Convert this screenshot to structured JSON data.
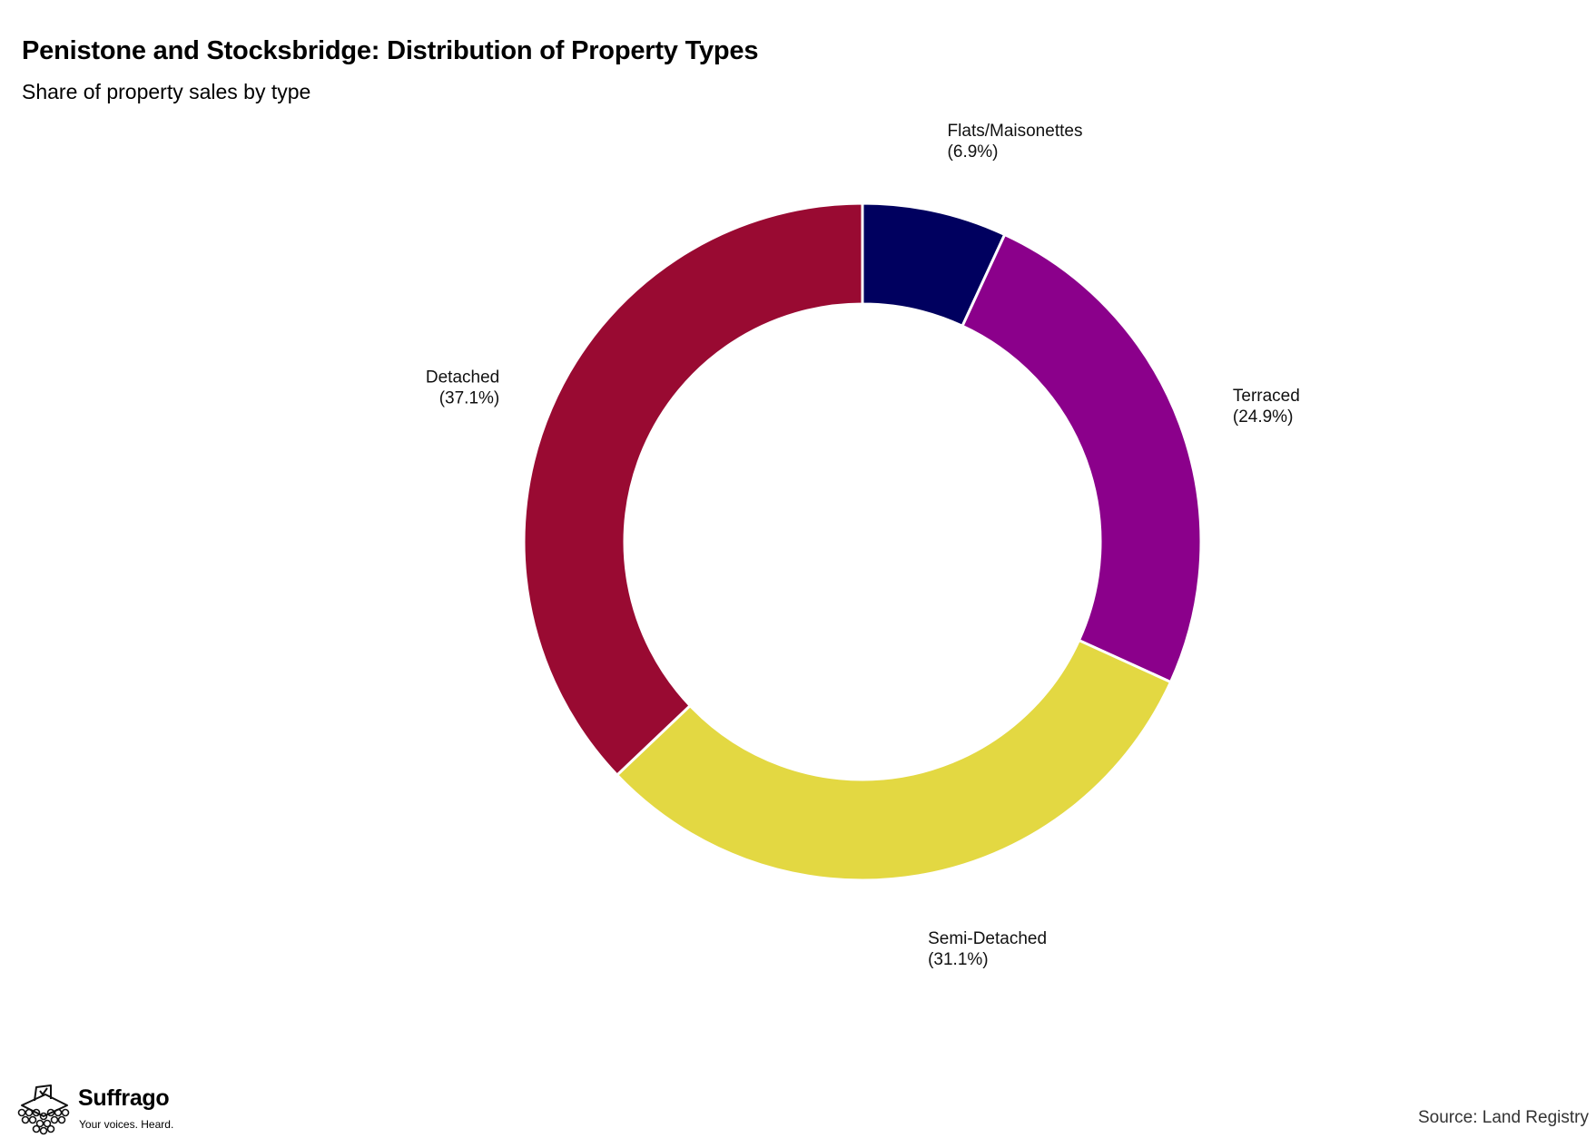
{
  "header": {
    "title": "Penistone and Stocksbridge: Distribution of Property Types",
    "subtitle": "Share of property sales by type"
  },
  "chart_data": {
    "type": "pie",
    "style": "donut",
    "title": "Penistone and Stocksbridge: Distribution of Property Types",
    "subtitle": "Share of property sales by type",
    "start": "12 o'clock, clockwise",
    "slices": [
      {
        "label": "Flats/Maisonettes",
        "pct_text": "(6.9%)",
        "value": 6.9,
        "color": "#00005f"
      },
      {
        "label": "Terraced",
        "pct_text": "(24.9%)",
        "value": 24.9,
        "color": "#8b008b"
      },
      {
        "label": "Semi-Detached",
        "pct_text": "(31.1%)",
        "value": 31.1,
        "color": "#e3d842"
      },
      {
        "label": "Detached",
        "pct_text": "(37.1%)",
        "value": 37.1,
        "color": "#990a32"
      }
    ]
  },
  "footer": {
    "brand_name": "Suffrago",
    "brand_tagline": "Your voices. Heard.",
    "source": "Source: Land Registry"
  }
}
